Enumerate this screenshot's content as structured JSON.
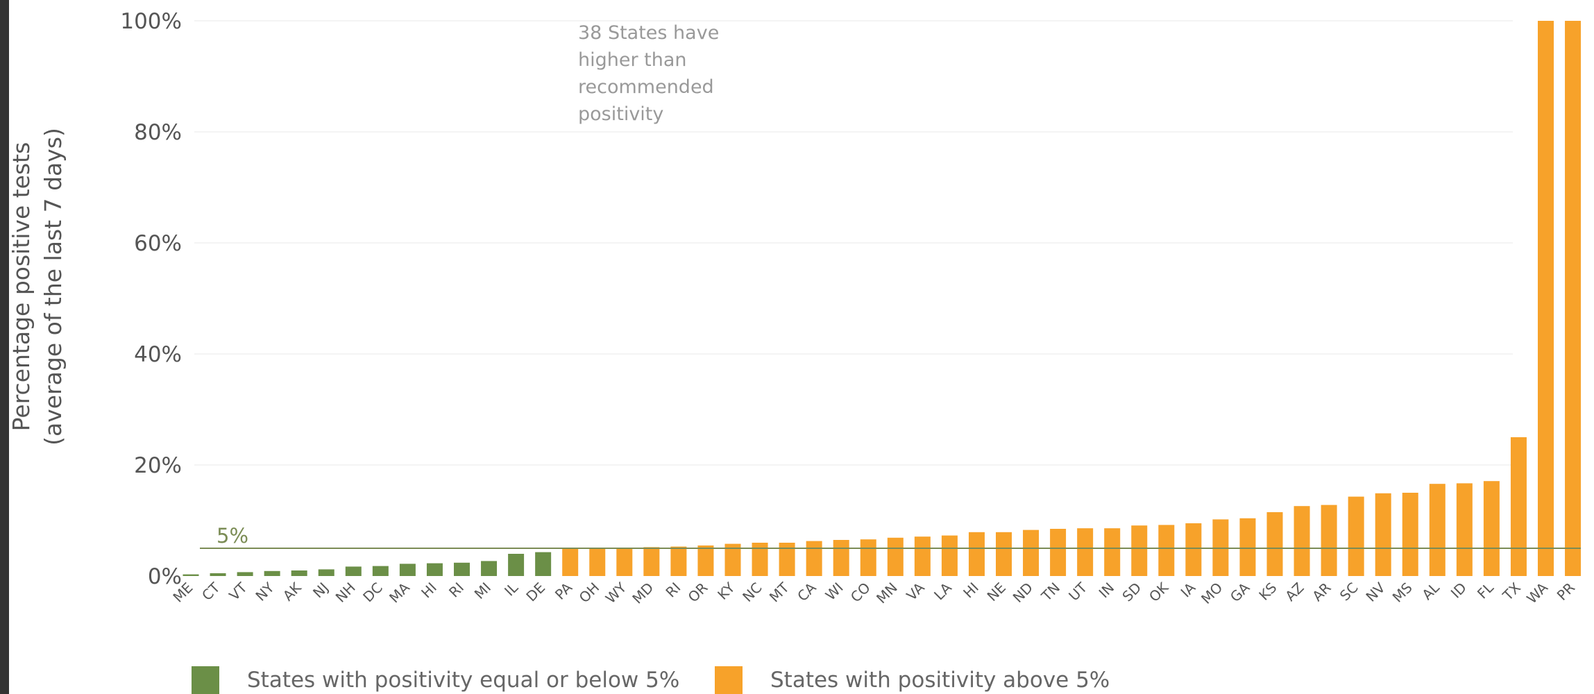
{
  "chart_data": {
    "type": "bar",
    "ylabel_line1": "Percentage positive tests",
    "ylabel_line2": "(average of the last 7 days)",
    "ylim": [
      0,
      100
    ],
    "yticks": [
      "0%",
      "20%",
      "40%",
      "60%",
      "80%",
      "100%"
    ],
    "ytick_values": [
      0,
      20,
      40,
      60,
      80,
      100
    ],
    "threshold": {
      "value": 5,
      "label": "5%"
    },
    "annotation": [
      "38 States have",
      "higher than",
      "recommended",
      "positivity"
    ],
    "grid": true,
    "legend_position": "bottom",
    "categories": [
      "ME",
      "CT",
      "VT",
      "NY",
      "AK",
      "NJ",
      "NH",
      "DC",
      "MA",
      "HI",
      "RI",
      "MI",
      "IL",
      "DE",
      "PA",
      "OH",
      "WY",
      "MD",
      "RI",
      "OR",
      "KY",
      "NC",
      "MT",
      "CA",
      "WI",
      "CO",
      "MN",
      "VA",
      "LA",
      "HI",
      "NE",
      "ND",
      "TN",
      "UT",
      "IN",
      "SD",
      "OK",
      "IA",
      "MO",
      "GA",
      "KS",
      "AZ",
      "AR",
      "SC",
      "NV",
      "MS",
      "AL",
      "ID",
      "FL",
      "TX",
      "WA",
      "PR"
    ],
    "values": [
      0.3,
      0.5,
      0.7,
      0.9,
      1.0,
      1.2,
      1.7,
      1.8,
      2.2,
      2.3,
      2.4,
      2.7,
      4.0,
      4.3,
      5.0,
      5.0,
      5.1,
      5.2,
      5.3,
      5.5,
      5.8,
      6.0,
      6.0,
      6.3,
      6.5,
      6.6,
      6.9,
      7.1,
      7.3,
      7.9,
      7.9,
      8.3,
      8.5,
      8.6,
      8.6,
      9.1,
      9.2,
      9.5,
      10.2,
      10.4,
      11.5,
      12.6,
      12.8,
      14.3,
      14.9,
      15.0,
      16.6,
      16.7,
      17.1,
      25.0,
      100,
      100
    ],
    "series": [
      {
        "name": "States with positivity equal or below 5%",
        "color": "#6b8f47"
      },
      {
        "name": "States with positivity above 5%",
        "color": "#f7a22a"
      }
    ],
    "below_count": 14
  },
  "colors": {
    "threshold_line": "#7b8c55",
    "threshold_label": "#7b8c55",
    "grid": "#e8e8e8",
    "tick_text": "#555555",
    "annotation_text": "#999999"
  }
}
